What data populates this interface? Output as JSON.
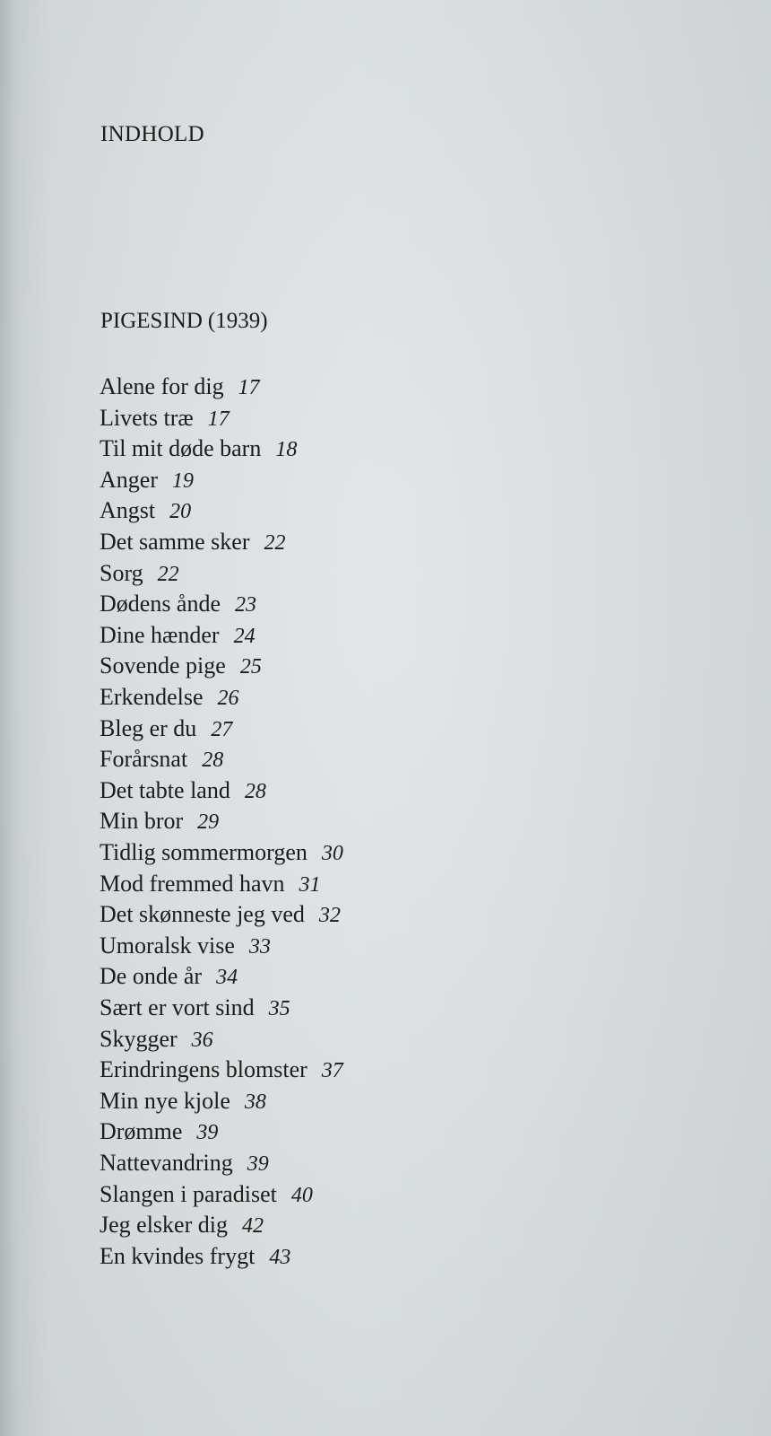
{
  "page": {
    "heading": "INDHOLD",
    "section": {
      "title": "PIGESIND",
      "year": "(1939)"
    },
    "entries": [
      {
        "title": "Alene for dig",
        "page": "17"
      },
      {
        "title": "Livets træ",
        "page": "17"
      },
      {
        "title": "Til mit døde barn",
        "page": "18"
      },
      {
        "title": "Anger",
        "page": "19"
      },
      {
        "title": "Angst",
        "page": "20"
      },
      {
        "title": "Det samme sker",
        "page": "22"
      },
      {
        "title": "Sorg",
        "page": "22"
      },
      {
        "title": "Dødens ånde",
        "page": "23"
      },
      {
        "title": "Dine hænder",
        "page": "24"
      },
      {
        "title": "Sovende pige",
        "page": "25"
      },
      {
        "title": "Erkendelse",
        "page": "26"
      },
      {
        "title": "Bleg er du",
        "page": "27"
      },
      {
        "title": "Forårsnat",
        "page": "28"
      },
      {
        "title": "Det tabte land",
        "page": "28"
      },
      {
        "title": "Min bror",
        "page": "29"
      },
      {
        "title": "Tidlig sommermorgen",
        "page": "30"
      },
      {
        "title": "Mod fremmed havn",
        "page": "31"
      },
      {
        "title": "Det skønneste jeg ved",
        "page": "32"
      },
      {
        "title": "Umoralsk vise",
        "page": "33"
      },
      {
        "title": "De onde år",
        "page": "34"
      },
      {
        "title": "Sært er vort sind",
        "page": "35"
      },
      {
        "title": "Skygger",
        "page": "36"
      },
      {
        "title": "Erindringens blomster",
        "page": "37"
      },
      {
        "title": "Min nye kjole",
        "page": "38"
      },
      {
        "title": "Drømme",
        "page": "39"
      },
      {
        "title": "Nattevandring",
        "page": "39"
      },
      {
        "title": "Slangen i paradiset",
        "page": "40"
      },
      {
        "title": "Jeg elsker dig",
        "page": "42"
      },
      {
        "title": "En kvindes frygt",
        "page": "43"
      }
    ]
  }
}
